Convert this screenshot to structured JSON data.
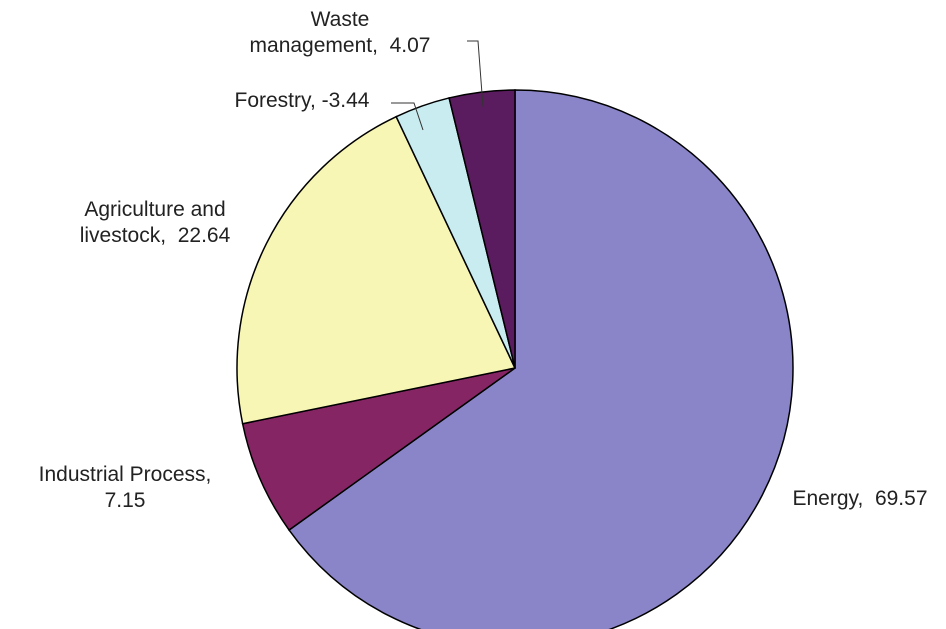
{
  "chart_data": {
    "type": "pie",
    "title": "",
    "slices": [
      {
        "name": "Energy",
        "value": 69.57,
        "label_lines": [
          "Energy,  69.57"
        ],
        "color": "#8a85c8"
      },
      {
        "name": "Industrial Process",
        "value": 7.15,
        "label_lines": [
          "Industrial Process,",
          "7.15"
        ],
        "color": "#862563"
      },
      {
        "name": "Agriculture and livestock",
        "value": 22.64,
        "label_lines": [
          "Agriculture and",
          "livestock,  22.64"
        ],
        "color": "#f8f6b4"
      },
      {
        "name": "Forestry",
        "value": -3.44,
        "label_lines": [
          "Forestry, -3.44"
        ],
        "color": "#c8ecf0"
      },
      {
        "name": "Waste management",
        "value": 4.07,
        "label_lines": [
          "Waste",
          "management,  4.07"
        ],
        "color": "#5b1b5f"
      }
    ],
    "legend": "none",
    "start_angle": "12 o'clock",
    "direction": "clockwise"
  }
}
